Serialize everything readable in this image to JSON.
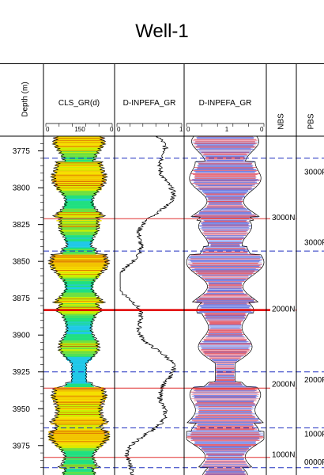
{
  "chart_data": {
    "type": "well-log",
    "title": "Well-1",
    "depth_label": "Depth (m)",
    "depth_range": [
      3765,
      3995
    ],
    "depth_ticks": [
      3775,
      3800,
      3825,
      3850,
      3875,
      3900,
      3925,
      3950,
      3975
    ],
    "tracks": [
      {
        "label": "CLS_GR(d)",
        "scale_left": "0",
        "scale_mid": "150",
        "scale_right": "0"
      },
      {
        "label": "D-INPEFA_GR",
        "scale_left": "0",
        "scale_right": "1"
      },
      {
        "label": "D-INPEFA_GR",
        "scale_left": "0",
        "scale_mid": "1",
        "scale_right": "0"
      },
      {
        "label": "NBS"
      },
      {
        "label": "PBS"
      }
    ],
    "nbs_labels": [
      {
        "depth": 3822,
        "text": "3000N"
      },
      {
        "depth": 3884,
        "text": "2000N"
      },
      {
        "depth": 3935,
        "text": "2000N"
      },
      {
        "depth": 3983,
        "text": "1000N"
      }
    ],
    "pbs_labels": [
      {
        "depth": 3791,
        "text": "3000F"
      },
      {
        "depth": 3839,
        "text": "3000F"
      },
      {
        "depth": 3932,
        "text": "2000F"
      },
      {
        "depth": 3969,
        "text": "1000F"
      },
      {
        "depth": 3988,
        "text": "0000F"
      }
    ],
    "blue_dashed_depths": [
      3780,
      3843,
      3925,
      3963,
      3990
    ],
    "red_solid_depths": [
      3821,
      3936,
      3983
    ],
    "thick_red_depths": [
      3883
    ]
  }
}
